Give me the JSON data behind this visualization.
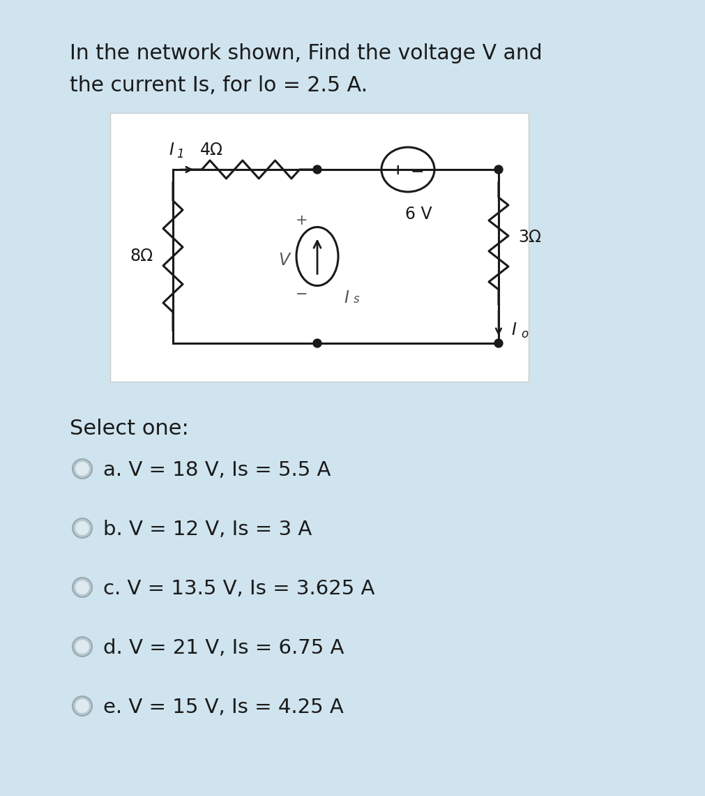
{
  "bg_color": "#cfe4ef",
  "page_bg": "#b8cdd8",
  "title_line1": "In the network shown, Find the voltage V and",
  "title_line2": "the current Is, for lo = 2.5 A.",
  "circuit_bg": "#ffffff",
  "select_one": "Select one:",
  "options": [
    "a. V = 18 V, Is = 5.5 A",
    "b. V = 12 V, Is = 3 A",
    "c. V = 13.5 V, Is = 3.625 A",
    "d. V = 21 V, Is = 6.75 A",
    "e. V = 15 V, Is = 4.25 A"
  ],
  "resistor_8": "8Ω",
  "resistor_4": "4Ω",
  "resistor_3": "3Ω",
  "voltage_6": "6 V",
  "label_I1": "I",
  "label_Is": "I",
  "label_Io": "I",
  "label_V": "V",
  "text_color": "#1a1a1a",
  "circuit_line_color": "#1a1a1a",
  "radio_fill": "#b0bec5",
  "radio_border": "#90a4ae"
}
